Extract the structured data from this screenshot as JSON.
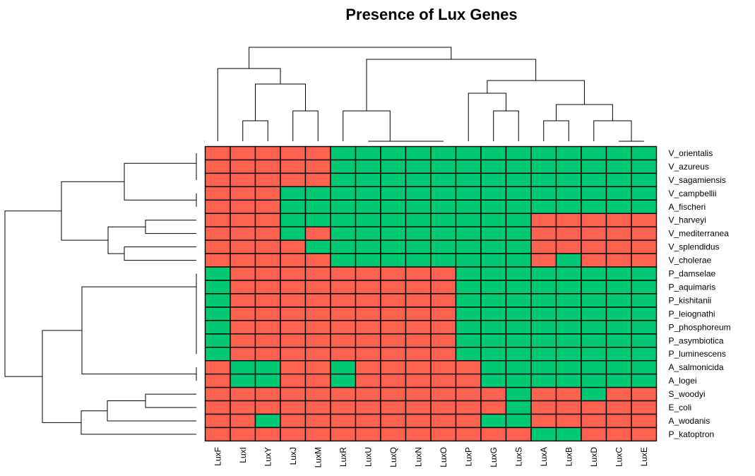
{
  "chart_data": {
    "type": "heatmap",
    "title": "Presence of Lux Genes",
    "columns": [
      "LuxF",
      "LuxI",
      "LuxY",
      "LuxJ",
      "LuxM",
      "LuxR",
      "LuxU",
      "LuxQ",
      "LuxN",
      "LuxO",
      "LuxP",
      "LuxG",
      "LuxS",
      "LuxA",
      "LuxB",
      "LuxD",
      "LuxC",
      "LuxE"
    ],
    "rows": [
      "V_orientalis",
      "V_azureus",
      "V_sagamiensis",
      "V_campbellii",
      "A_fischeri",
      "V_harveyi",
      "V_mediterranea",
      "V_splendidus",
      "V_cholerae",
      "P_damselae",
      "P_aquimaris",
      "P_kishitanii",
      "P_leiognathi",
      "P_phosphoreum",
      "P_asymbiotica",
      "P_luminescens",
      "A_salmonicida",
      "A_logei",
      "S_woodyi",
      "E_coli",
      "A_wodanis",
      "P_katoptron"
    ],
    "values": [
      [
        0,
        0,
        0,
        0,
        0,
        1,
        1,
        1,
        1,
        1,
        1,
        1,
        1,
        1,
        1,
        1,
        1,
        1
      ],
      [
        0,
        0,
        0,
        0,
        0,
        1,
        1,
        1,
        1,
        1,
        1,
        1,
        1,
        1,
        1,
        1,
        1,
        1
      ],
      [
        0,
        0,
        0,
        0,
        0,
        1,
        1,
        1,
        1,
        1,
        1,
        1,
        1,
        1,
        1,
        1,
        1,
        1
      ],
      [
        0,
        0,
        0,
        1,
        1,
        1,
        1,
        1,
        1,
        1,
        1,
        1,
        1,
        1,
        1,
        1,
        1,
        1
      ],
      [
        0,
        0,
        0,
        1,
        1,
        1,
        1,
        1,
        1,
        1,
        1,
        1,
        1,
        1,
        1,
        1,
        1,
        1
      ],
      [
        0,
        0,
        0,
        1,
        1,
        1,
        1,
        1,
        1,
        1,
        1,
        1,
        1,
        0,
        0,
        0,
        0,
        0
      ],
      [
        0,
        0,
        0,
        1,
        0,
        1,
        1,
        1,
        1,
        1,
        1,
        1,
        1,
        0,
        0,
        0,
        0,
        0
      ],
      [
        0,
        0,
        0,
        0,
        1,
        1,
        1,
        1,
        1,
        1,
        1,
        1,
        1,
        0,
        0,
        0,
        0,
        0
      ],
      [
        0,
        0,
        0,
        0,
        0,
        1,
        1,
        1,
        1,
        1,
        1,
        1,
        1,
        0,
        1,
        0,
        0,
        0
      ],
      [
        1,
        0,
        0,
        0,
        0,
        0,
        0,
        0,
        0,
        0,
        1,
        1,
        1,
        1,
        1,
        1,
        1,
        1
      ],
      [
        1,
        0,
        0,
        0,
        0,
        0,
        0,
        0,
        0,
        0,
        1,
        1,
        1,
        1,
        1,
        1,
        1,
        1
      ],
      [
        1,
        0,
        0,
        0,
        0,
        0,
        0,
        0,
        0,
        0,
        1,
        1,
        1,
        1,
        1,
        1,
        1,
        1
      ],
      [
        1,
        0,
        0,
        0,
        0,
        0,
        0,
        0,
        0,
        0,
        1,
        1,
        1,
        1,
        1,
        1,
        1,
        1
      ],
      [
        1,
        0,
        0,
        0,
        0,
        0,
        0,
        0,
        0,
        0,
        1,
        1,
        1,
        1,
        1,
        1,
        1,
        1
      ],
      [
        1,
        0,
        0,
        0,
        0,
        0,
        0,
        0,
        0,
        0,
        1,
        1,
        1,
        1,
        1,
        1,
        1,
        1
      ],
      [
        1,
        0,
        0,
        0,
        0,
        0,
        0,
        0,
        0,
        0,
        1,
        1,
        1,
        1,
        1,
        1,
        1,
        1
      ],
      [
        0,
        1,
        1,
        0,
        0,
        1,
        0,
        0,
        0,
        0,
        0,
        1,
        1,
        1,
        1,
        1,
        1,
        1
      ],
      [
        0,
        1,
        1,
        0,
        0,
        1,
        0,
        0,
        0,
        0,
        0,
        1,
        1,
        1,
        1,
        1,
        1,
        1
      ],
      [
        0,
        0,
        0,
        0,
        0,
        0,
        0,
        0,
        0,
        0,
        0,
        0,
        1,
        0,
        0,
        1,
        0,
        0
      ],
      [
        0,
        0,
        0,
        0,
        0,
        0,
        0,
        0,
        0,
        0,
        0,
        0,
        1,
        0,
        0,
        0,
        0,
        0
      ],
      [
        0,
        0,
        1,
        0,
        0,
        0,
        0,
        0,
        0,
        0,
        0,
        1,
        1,
        0,
        0,
        0,
        0,
        0
      ],
      [
        0,
        0,
        0,
        0,
        0,
        0,
        0,
        0,
        0,
        0,
        0,
        0,
        0,
        1,
        1,
        0,
        0,
        0
      ]
    ],
    "colors": {
      "0": "#fd614f",
      "1": "#00c873"
    },
    "grid_color": "#000000",
    "legend": "none"
  }
}
